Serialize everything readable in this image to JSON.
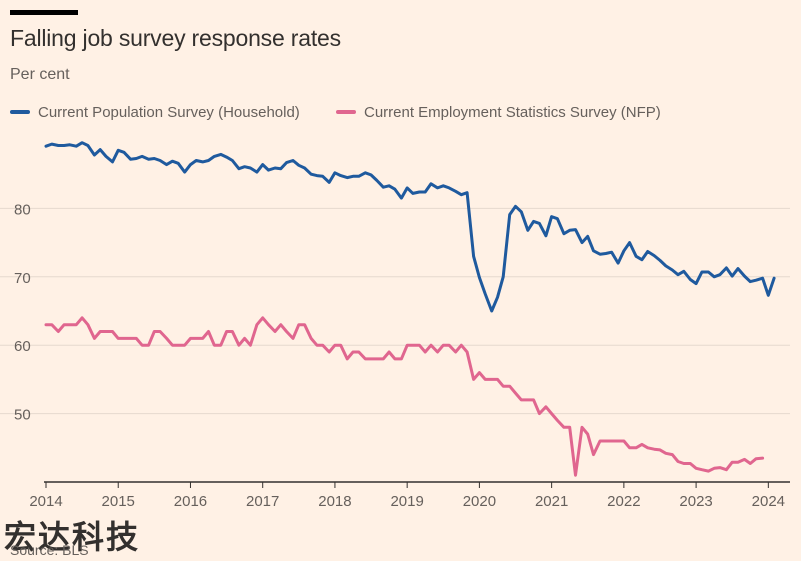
{
  "title": "Falling job survey response rates",
  "subtitle": "Per cent",
  "source": "Source: BLS",
  "watermark": "宏达科技",
  "colors": {
    "background": "#fff1e5",
    "household": "#1f5a9e",
    "nfp": "#e0668f",
    "grid": "#e6d9ce",
    "axis": "#33302e",
    "text": "#66605c"
  },
  "chart_data": {
    "type": "line",
    "title": "Falling job survey response rates",
    "ylabel": "Per cent",
    "xlim": [
      2014,
      2024.3
    ],
    "ylim": [
      40,
      90
    ],
    "yticks": [
      50,
      60,
      70,
      80
    ],
    "xticks": [
      2014,
      2015,
      2016,
      2017,
      2018,
      2019,
      2020,
      2021,
      2022,
      2023,
      2024
    ],
    "grid": true,
    "legend": "top-left",
    "series": [
      {
        "name": "Current Population Survey (Household)",
        "color": "#1f5a9e",
        "points": [
          [
            2014.0,
            89.1
          ],
          [
            2014.08,
            89.4
          ],
          [
            2014.17,
            89.2
          ],
          [
            2014.25,
            89.2
          ],
          [
            2014.33,
            89.3
          ],
          [
            2014.42,
            89.1
          ],
          [
            2014.5,
            89.6
          ],
          [
            2014.58,
            89.2
          ],
          [
            2014.67,
            87.8
          ],
          [
            2014.75,
            88.6
          ],
          [
            2014.83,
            87.6
          ],
          [
            2014.92,
            86.8
          ],
          [
            2015.0,
            88.5
          ],
          [
            2015.08,
            88.2
          ],
          [
            2015.17,
            87.2
          ],
          [
            2015.25,
            87.3
          ],
          [
            2015.33,
            87.6
          ],
          [
            2015.42,
            87.2
          ],
          [
            2015.5,
            87.3
          ],
          [
            2015.58,
            87.0
          ],
          [
            2015.67,
            86.4
          ],
          [
            2015.75,
            86.9
          ],
          [
            2015.83,
            86.6
          ],
          [
            2015.92,
            85.3
          ],
          [
            2016.0,
            86.4
          ],
          [
            2016.08,
            87.0
          ],
          [
            2016.17,
            86.8
          ],
          [
            2016.25,
            87.0
          ],
          [
            2016.33,
            87.6
          ],
          [
            2016.42,
            87.9
          ],
          [
            2016.5,
            87.5
          ],
          [
            2016.58,
            87.0
          ],
          [
            2016.67,
            85.8
          ],
          [
            2016.75,
            86.1
          ],
          [
            2016.83,
            85.9
          ],
          [
            2016.92,
            85.3
          ],
          [
            2017.0,
            86.4
          ],
          [
            2017.08,
            85.6
          ],
          [
            2017.17,
            85.9
          ],
          [
            2017.25,
            85.8
          ],
          [
            2017.33,
            86.7
          ],
          [
            2017.42,
            87.0
          ],
          [
            2017.5,
            86.3
          ],
          [
            2017.58,
            85.9
          ],
          [
            2017.67,
            85.0
          ],
          [
            2017.75,
            84.8
          ],
          [
            2017.83,
            84.7
          ],
          [
            2017.92,
            83.8
          ],
          [
            2018.0,
            85.2
          ],
          [
            2018.08,
            84.8
          ],
          [
            2018.17,
            84.5
          ],
          [
            2018.25,
            84.7
          ],
          [
            2018.33,
            84.7
          ],
          [
            2018.42,
            85.2
          ],
          [
            2018.5,
            84.9
          ],
          [
            2018.58,
            84.1
          ],
          [
            2018.67,
            83.1
          ],
          [
            2018.75,
            83.3
          ],
          [
            2018.83,
            82.8
          ],
          [
            2018.92,
            81.5
          ],
          [
            2019.0,
            83.0
          ],
          [
            2019.08,
            82.2
          ],
          [
            2019.17,
            82.4
          ],
          [
            2019.25,
            82.4
          ],
          [
            2019.33,
            83.6
          ],
          [
            2019.42,
            83.0
          ],
          [
            2019.5,
            83.3
          ],
          [
            2019.58,
            83.0
          ],
          [
            2019.67,
            82.5
          ],
          [
            2019.75,
            82.0
          ],
          [
            2019.83,
            82.3
          ],
          [
            2019.92,
            73.0
          ],
          [
            2020.0,
            69.9
          ],
          [
            2020.08,
            67.5
          ],
          [
            2020.17,
            65.0
          ],
          [
            2020.25,
            67.0
          ],
          [
            2020.33,
            70.0
          ],
          [
            2020.42,
            79.1
          ],
          [
            2020.5,
            80.3
          ],
          [
            2020.58,
            79.5
          ],
          [
            2020.67,
            76.8
          ],
          [
            2020.75,
            78.1
          ],
          [
            2020.83,
            77.8
          ],
          [
            2020.92,
            76.0
          ],
          [
            2021.0,
            78.8
          ],
          [
            2021.08,
            78.5
          ],
          [
            2021.17,
            76.3
          ],
          [
            2021.25,
            76.8
          ],
          [
            2021.33,
            76.9
          ],
          [
            2021.42,
            75.0
          ],
          [
            2021.5,
            75.9
          ],
          [
            2021.58,
            73.8
          ],
          [
            2021.67,
            73.3
          ],
          [
            2021.75,
            73.4
          ],
          [
            2021.83,
            73.6
          ],
          [
            2021.92,
            72.0
          ],
          [
            2022.0,
            73.8
          ],
          [
            2022.08,
            75.0
          ],
          [
            2022.17,
            73.0
          ],
          [
            2022.25,
            72.5
          ],
          [
            2022.33,
            73.7
          ],
          [
            2022.42,
            73.1
          ],
          [
            2022.5,
            72.4
          ],
          [
            2022.58,
            71.6
          ],
          [
            2022.67,
            71.0
          ],
          [
            2022.75,
            70.3
          ],
          [
            2022.83,
            70.8
          ],
          [
            2022.92,
            69.6
          ],
          [
            2023.0,
            69.0
          ],
          [
            2023.08,
            70.7
          ],
          [
            2023.17,
            70.7
          ],
          [
            2023.25,
            70.0
          ],
          [
            2023.33,
            70.3
          ],
          [
            2023.42,
            71.3
          ],
          [
            2023.5,
            70.1
          ],
          [
            2023.58,
            71.2
          ],
          [
            2023.67,
            70.1
          ],
          [
            2023.75,
            69.3
          ],
          [
            2023.83,
            69.5
          ],
          [
            2023.92,
            69.8
          ],
          [
            2024.0,
            67.3
          ],
          [
            2024.08,
            69.8
          ]
        ]
      },
      {
        "name": "Current Employment Statistics Survey (NFP)",
        "color": "#e0668f",
        "points": [
          [
            2014.0,
            63.0
          ],
          [
            2014.08,
            63.0
          ],
          [
            2014.17,
            62.0
          ],
          [
            2014.25,
            63.0
          ],
          [
            2014.33,
            63.0
          ],
          [
            2014.42,
            63.0
          ],
          [
            2014.5,
            64.0
          ],
          [
            2014.58,
            63.0
          ],
          [
            2014.67,
            61.0
          ],
          [
            2014.75,
            62.0
          ],
          [
            2014.83,
            62.0
          ],
          [
            2014.92,
            62.0
          ],
          [
            2015.0,
            61.0
          ],
          [
            2015.08,
            61.0
          ],
          [
            2015.17,
            61.0
          ],
          [
            2015.25,
            61.0
          ],
          [
            2015.33,
            60.0
          ],
          [
            2015.42,
            60.0
          ],
          [
            2015.5,
            62.0
          ],
          [
            2015.58,
            62.0
          ],
          [
            2015.67,
            61.0
          ],
          [
            2015.75,
            60.0
          ],
          [
            2015.83,
            60.0
          ],
          [
            2015.92,
            60.0
          ],
          [
            2016.0,
            61.0
          ],
          [
            2016.08,
            61.0
          ],
          [
            2016.17,
            61.0
          ],
          [
            2016.25,
            62.0
          ],
          [
            2016.33,
            60.0
          ],
          [
            2016.42,
            60.0
          ],
          [
            2016.5,
            62.0
          ],
          [
            2016.58,
            62.0
          ],
          [
            2016.67,
            60.0
          ],
          [
            2016.75,
            61.0
          ],
          [
            2016.83,
            60.0
          ],
          [
            2016.92,
            63.0
          ],
          [
            2017.0,
            64.0
          ],
          [
            2017.08,
            63.0
          ],
          [
            2017.17,
            62.0
          ],
          [
            2017.25,
            63.0
          ],
          [
            2017.33,
            62.0
          ],
          [
            2017.42,
            61.0
          ],
          [
            2017.5,
            63.0
          ],
          [
            2017.58,
            63.0
          ],
          [
            2017.67,
            61.0
          ],
          [
            2017.75,
            60.0
          ],
          [
            2017.83,
            60.0
          ],
          [
            2017.92,
            59.0
          ],
          [
            2018.0,
            60.0
          ],
          [
            2018.08,
            60.0
          ],
          [
            2018.17,
            58.0
          ],
          [
            2018.25,
            59.0
          ],
          [
            2018.33,
            59.0
          ],
          [
            2018.42,
            58.0
          ],
          [
            2018.5,
            58.0
          ],
          [
            2018.58,
            58.0
          ],
          [
            2018.67,
            58.0
          ],
          [
            2018.75,
            59.0
          ],
          [
            2018.83,
            58.0
          ],
          [
            2018.92,
            58.0
          ],
          [
            2019.0,
            60.0
          ],
          [
            2019.08,
            60.0
          ],
          [
            2019.17,
            60.0
          ],
          [
            2019.25,
            59.0
          ],
          [
            2019.33,
            60.0
          ],
          [
            2019.42,
            59.0
          ],
          [
            2019.5,
            60.0
          ],
          [
            2019.58,
            60.0
          ],
          [
            2019.67,
            59.0
          ],
          [
            2019.75,
            60.0
          ],
          [
            2019.83,
            59.0
          ],
          [
            2019.92,
            55.0
          ],
          [
            2020.0,
            56.0
          ],
          [
            2020.08,
            55.0
          ],
          [
            2020.17,
            55.0
          ],
          [
            2020.25,
            55.0
          ],
          [
            2020.33,
            54.0
          ],
          [
            2020.42,
            54.0
          ],
          [
            2020.5,
            53.0
          ],
          [
            2020.58,
            52.0
          ],
          [
            2020.67,
            52.0
          ],
          [
            2020.75,
            52.0
          ],
          [
            2020.83,
            50.0
          ],
          [
            2020.92,
            51.0
          ],
          [
            2021.0,
            50.0
          ],
          [
            2021.08,
            49.0
          ],
          [
            2021.17,
            48.0
          ],
          [
            2021.25,
            48.0
          ],
          [
            2021.33,
            41.0
          ],
          [
            2021.42,
            48.0
          ],
          [
            2021.5,
            47.0
          ],
          [
            2021.58,
            44.0
          ],
          [
            2021.67,
            46.0
          ],
          [
            2021.75,
            46.0
          ],
          [
            2021.83,
            46.0
          ],
          [
            2021.92,
            46.0
          ],
          [
            2022.0,
            46.0
          ],
          [
            2022.08,
            45.0
          ],
          [
            2022.17,
            45.0
          ],
          [
            2022.25,
            45.5
          ],
          [
            2022.33,
            45.0
          ],
          [
            2022.42,
            44.8
          ],
          [
            2022.5,
            44.7
          ],
          [
            2022.58,
            44.2
          ],
          [
            2022.67,
            44.0
          ],
          [
            2022.75,
            43.0
          ],
          [
            2022.83,
            42.7
          ],
          [
            2022.92,
            42.7
          ],
          [
            2023.0,
            42.0
          ],
          [
            2023.08,
            41.8
          ],
          [
            2023.17,
            41.6
          ],
          [
            2023.25,
            42.0
          ],
          [
            2023.33,
            42.1
          ],
          [
            2023.42,
            41.8
          ],
          [
            2023.5,
            42.9
          ],
          [
            2023.58,
            42.9
          ],
          [
            2023.67,
            43.3
          ],
          [
            2023.75,
            42.7
          ],
          [
            2023.83,
            43.4
          ],
          [
            2023.92,
            43.5
          ]
        ]
      }
    ]
  }
}
